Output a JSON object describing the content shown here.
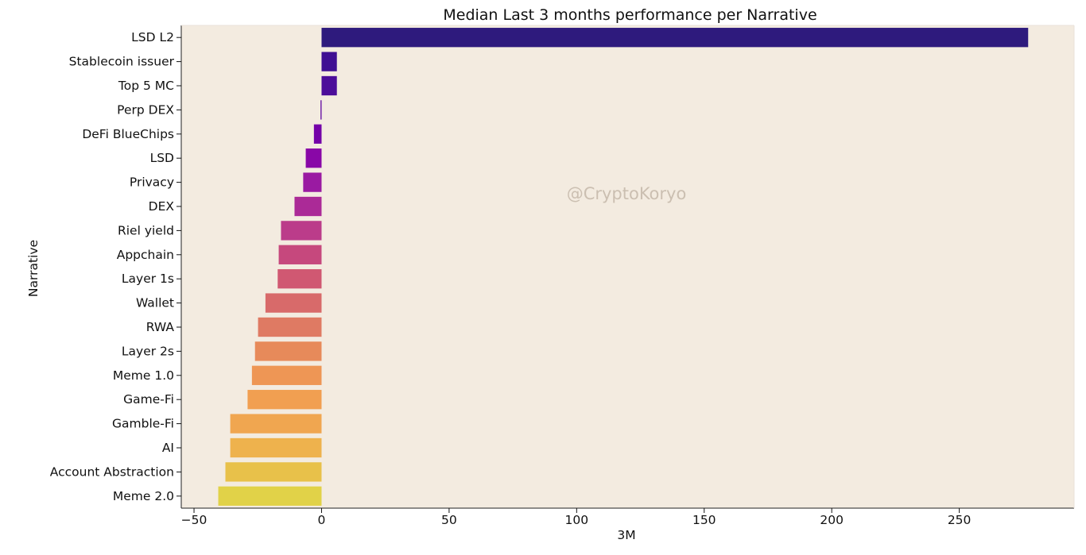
{
  "chart_data": {
    "type": "bar",
    "orientation": "horizontal",
    "title": "Median Last 3 months performance per Narrative",
    "xlabel": "3M",
    "ylabel": "Narrative",
    "xlim": [
      -55,
      295
    ],
    "xticks": [
      -50,
      0,
      50,
      100,
      150,
      200,
      250
    ],
    "xtick_labels": [
      "−50",
      "0",
      "50",
      "100",
      "150",
      "200",
      "250"
    ],
    "watermark": "@CryptoKoryo",
    "background_color": "#f3ebe0",
    "grid": false,
    "categories": [
      "LSD L2",
      "Stablecoin issuer",
      "Top 5 MC",
      "Perp DEX",
      "DeFi BlueChips",
      "LSD",
      "Privacy",
      "DEX",
      "Riel yield",
      "Appchain",
      "Layer 1s",
      "Wallet",
      "RWA",
      "Layer 2s",
      "Meme 1.0",
      "Game-Fi",
      "Gamble-Fi",
      "AI",
      "Account Abstraction",
      "Meme 2.0"
    ],
    "values": [
      277,
      6,
      6,
      -0.4,
      -3,
      -6.2,
      -7.2,
      -10.6,
      -15.9,
      -16.8,
      -17.2,
      -22,
      -24.9,
      -26.1,
      -27.3,
      -29,
      -35.8,
      -35.8,
      -37.7,
      -40.5
    ],
    "colors": [
      "#2e1a7d",
      "#3f0f93",
      "#4c0d9a",
      "#5c029f",
      "#7401a8",
      "#8907a7",
      "#9a1aa2",
      "#ab2a97",
      "#bb3c8a",
      "#c6487d",
      "#d05872",
      "#d86a6a",
      "#df7a63",
      "#e78a5a",
      "#ee9655",
      "#f19f51",
      "#f0a650",
      "#eeb24d",
      "#e8c14a",
      "#e1d248"
    ]
  }
}
